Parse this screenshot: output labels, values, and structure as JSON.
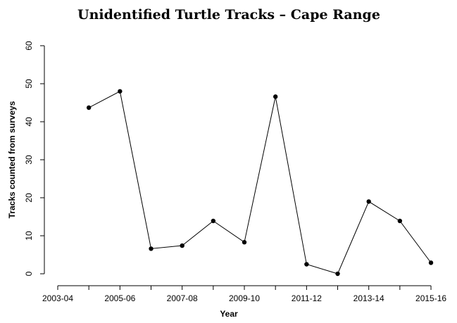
{
  "chart_data": {
    "type": "line",
    "title": "Unidentified Turtle Tracks – Cape Range",
    "x_label": "Year",
    "y_label": "Tracks counted from surveys",
    "categories": [
      "2003-04",
      null,
      "2005-06",
      null,
      "2007-08",
      null,
      "2009-10",
      null,
      "2011-12",
      null,
      "2013-14",
      null,
      "2015-16"
    ],
    "values": [
      null,
      43.7,
      48,
      6.6,
      7.4,
      13.9,
      8.3,
      46.6,
      2.5,
      0,
      19,
      13.9,
      2.9
    ],
    "color": "#000000",
    "ylim": [
      -2.4,
      62.4
    ],
    "yticks": [
      0,
      10,
      20,
      30,
      40,
      50,
      60
    ],
    "grid": false
  }
}
